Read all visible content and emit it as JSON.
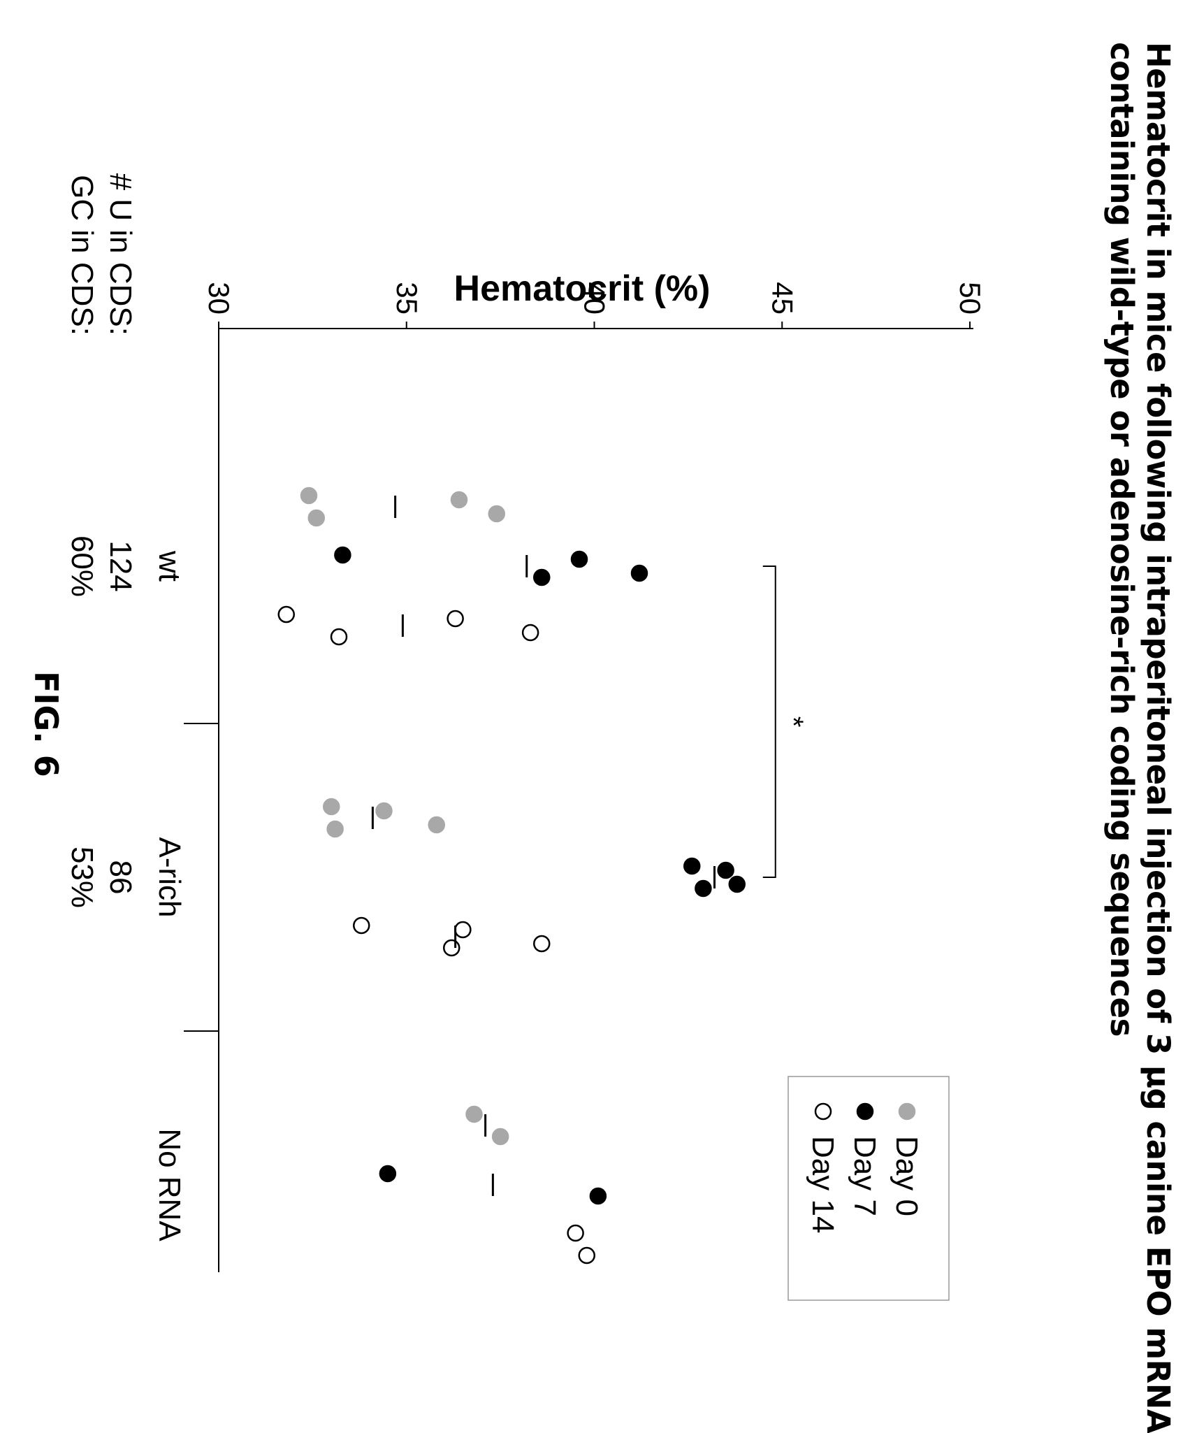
{
  "title_lines": [
    "Hematocrit in mice following intraperitoneal injection of 3 μg canine EPO mRNA",
    "containing wild-type or adenosine-rich coding sequences"
  ],
  "figure_label": "FIG. 6",
  "colors": {
    "day0": "#a8a8a8",
    "day7": "#000000",
    "day14": "#ffffff",
    "axis": "#000000"
  },
  "row_labels": [
    "# U in CDS:",
    "GC in CDS:"
  ],
  "chart_data": {
    "type": "scatter",
    "ylabel": "Hematocrit (%)",
    "ylim": [
      30,
      50
    ],
    "yticks": [
      30,
      35,
      40,
      45,
      50
    ],
    "groups": [
      {
        "name": "wt",
        "u_in_cds": "124",
        "gc_in_cds": "60%"
      },
      {
        "name": "A-rich",
        "u_in_cds": "86",
        "gc_in_cds": "53%"
      },
      {
        "name": "No RNA",
        "u_in_cds": "",
        "gc_in_cds": ""
      }
    ],
    "series": [
      {
        "name": "Day 0",
        "marker": "gray-filled",
        "points": [
          {
            "group": "wt",
            "values": [
              32.4,
              32.6,
              36.4,
              37.4
            ],
            "mean": 34.7
          },
          {
            "group": "A-rich",
            "values": [
              33.0,
              33.1,
              34.4,
              35.8
            ],
            "mean": 34.1
          },
          {
            "group": "No RNA",
            "values": [
              36.8,
              37.5
            ],
            "mean": 37.1
          }
        ]
      },
      {
        "name": "Day 7",
        "marker": "black-filled",
        "points": [
          {
            "group": "wt",
            "values": [
              33.3,
              38.6,
              39.6,
              41.2
            ],
            "mean": 38.2
          },
          {
            "group": "A-rich",
            "values": [
              42.6,
              42.9,
              43.5,
              43.8
            ],
            "mean": 43.2
          },
          {
            "group": "No RNA",
            "values": [
              34.5,
              40.1
            ],
            "mean": 37.3
          }
        ]
      },
      {
        "name": "Day 14",
        "marker": "open-circle",
        "points": [
          {
            "group": "wt",
            "values": [
              31.8,
              33.2,
              36.3,
              38.3
            ],
            "mean": 34.9
          },
          {
            "group": "A-rich",
            "values": [
              33.8,
              36.2,
              36.5,
              38.6
            ],
            "mean": 36.3
          },
          {
            "group": "No RNA",
            "values": [
              39.5,
              39.8
            ],
            "mean": null
          }
        ]
      }
    ],
    "significance": {
      "label": "*",
      "from_group": "wt",
      "to_group": "A-rich",
      "series": "Day 7"
    },
    "legend": {
      "placement": "top-right",
      "entries": [
        "Day 0",
        "Day 7",
        "Day 14"
      ]
    }
  }
}
